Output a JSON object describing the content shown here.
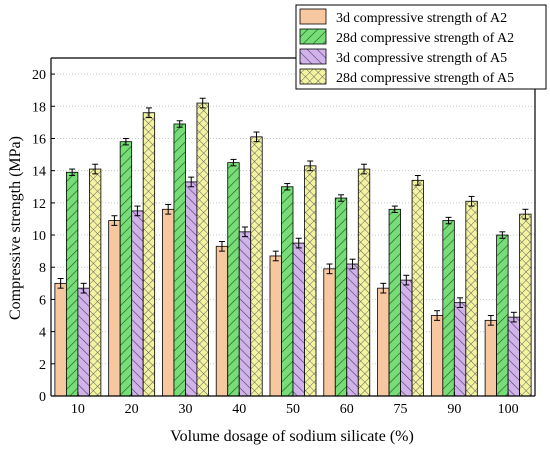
{
  "chart_data": {
    "type": "bar",
    "title": "",
    "xlabel": "Volume dosage of sodium silicate (%)",
    "ylabel": "Compressive strength (MPa)",
    "ylim": [
      0,
      21
    ],
    "yticks": [
      0,
      2,
      4,
      6,
      8,
      10,
      12,
      14,
      16,
      18,
      20
    ],
    "categories": [
      "10",
      "20",
      "30",
      "40",
      "50",
      "60",
      "75",
      "90",
      "100"
    ],
    "grid": "horizontal dotted",
    "legend_position": "top-right",
    "error_bars": true,
    "series": [
      {
        "name": "3d compressive strength of A2",
        "color": "#f7c8a0",
        "pattern": "none",
        "values": [
          7.0,
          10.9,
          11.6,
          9.3,
          8.7,
          7.9,
          6.7,
          5.0,
          4.7
        ],
        "errors": [
          0.3,
          0.3,
          0.3,
          0.3,
          0.3,
          0.3,
          0.3,
          0.3,
          0.3
        ]
      },
      {
        "name": "28d compressive strength of A2",
        "color": "#77dd77",
        "pattern": "diagonal",
        "values": [
          13.9,
          15.8,
          16.9,
          14.5,
          13.0,
          12.3,
          11.6,
          10.9,
          10.0
        ],
        "errors": [
          0.2,
          0.2,
          0.2,
          0.2,
          0.2,
          0.2,
          0.2,
          0.2,
          0.2
        ]
      },
      {
        "name": "3d compressive strength of A5",
        "color": "#d1b3ea",
        "pattern": "diagonal",
        "values": [
          6.7,
          11.5,
          13.3,
          10.2,
          9.5,
          8.2,
          7.2,
          5.8,
          4.9
        ],
        "errors": [
          0.3,
          0.3,
          0.3,
          0.3,
          0.3,
          0.3,
          0.3,
          0.3,
          0.3
        ]
      },
      {
        "name": "28d compressive strength of A5",
        "color": "#f3f3a0",
        "pattern": "crosshatch",
        "values": [
          14.1,
          17.6,
          18.2,
          16.1,
          14.3,
          14.1,
          13.4,
          12.1,
          11.3
        ],
        "errors": [
          0.3,
          0.3,
          0.3,
          0.3,
          0.3,
          0.3,
          0.3,
          0.3,
          0.3
        ]
      }
    ]
  }
}
